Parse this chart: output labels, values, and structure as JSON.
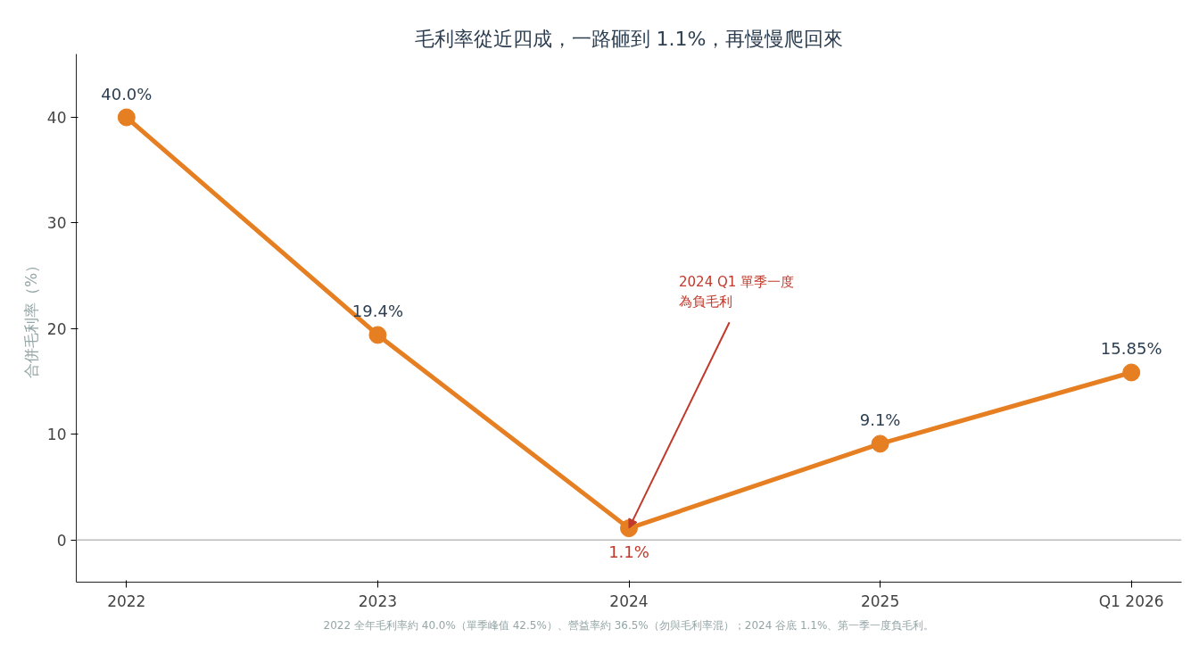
{
  "chart_data": {
    "type": "line",
    "title": "毛利率從近四成，一路砸到 1.1%，再慢慢爬回來",
    "ylabel": "合併毛利率（%）",
    "categories": [
      "2022",
      "2023",
      "2024",
      "2025",
      "Q1 2026"
    ],
    "series": [
      {
        "color": "#e67e22",
        "values": [
          40.0,
          19.4,
          1.1,
          9.1,
          15.85
        ]
      }
    ],
    "value_labels": [
      "40.0%",
      "19.4%",
      "1.1%",
      "9.1%",
      "15.85%"
    ],
    "ylim": [
      -4,
      46
    ],
    "yticks": [
      0,
      10,
      20,
      30,
      40
    ],
    "grid": false,
    "marker": "circle",
    "line_style": "solid",
    "ref_lines": [
      {
        "axis": "y",
        "value": 0,
        "color": "#bbbbbb"
      }
    ],
    "annotations": [
      {
        "text": "2024 Q1 單季一度為負毛利",
        "x": "2024",
        "y": 1.1
      },
      "2022 全年毛利率約 40.0%（單季峰值 42.5%）、營益率約 36.5%（勿與毛利率混）；2024 谷底 1.1%、第一季一度負毛利。"
    ]
  }
}
